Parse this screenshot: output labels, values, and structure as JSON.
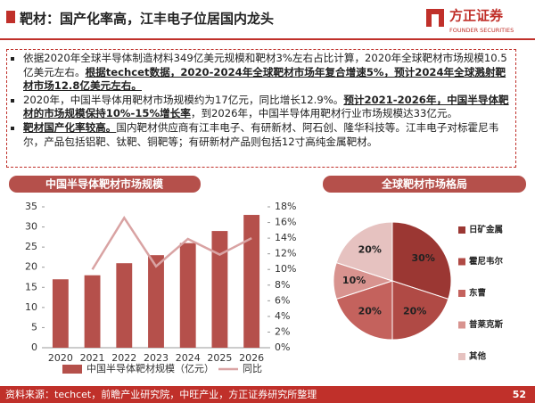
{
  "header": {
    "title": "靶材：国产化率高，江丰电子位居国内龙头",
    "logo_name": "方正证券",
    "logo_sub": "FOUNDER SECURITIES"
  },
  "bullets": [
    {
      "runs": [
        {
          "text": "依据2020年全球半导体制造材料349亿美元规模和靶材3%左右占比计算，2020年全球靶材市场规模10.5亿美元左右。",
          "bold": false,
          "underline": false
        },
        {
          "text": "根据techcet数据，2020-2024年全球靶材市场年复合增速5%，预计2024年全球溅射靶材市场12.8亿美元左右。",
          "bold": true,
          "underline": true
        }
      ]
    },
    {
      "runs": [
        {
          "text": "2020年，中国半导体用靶材市场规模约为17亿元，同比增长12.9%。",
          "bold": false,
          "underline": false
        },
        {
          "text": "预计2021-2026年，中国半导体靶材的市场规模保持10%-15%增长率",
          "bold": true,
          "underline": true
        },
        {
          "text": "，到2026年，中国半导体用靶材行业市场规模达33亿元。",
          "bold": false,
          "underline": false
        }
      ]
    },
    {
      "runs": [
        {
          "text": "靶材国产化率较高。",
          "bold": true,
          "underline": true
        },
        {
          "text": "国内靶材供应商有江丰电子、有研新材、阿石创、隆华科技等。江丰电子对标霍尼韦尔，产品包括铝靶、钛靶、铜靶等；有研新材产品则包括12寸高纯金属靶材。",
          "bold": false,
          "underline": false
        }
      ]
    }
  ],
  "chart_data": [
    {
      "type": "bar",
      "title": "中国半导体靶材市场规模",
      "categories": [
        "2020",
        "2021",
        "2022",
        "2023",
        "2024",
        "2025",
        "2026"
      ],
      "series": [
        {
          "name": "中国半导体靶材规模（亿元）",
          "color": "#b5504b",
          "values": [
            17,
            18,
            21,
            23,
            26,
            29,
            33
          ]
        },
        {
          "name": "同比",
          "color": "#d9a3a3",
          "type": "line",
          "axis": "y2",
          "values": [
            null,
            10,
            16.6,
            10.4,
            13.9,
            11.9,
            14
          ]
        }
      ],
      "ylim": [
        0,
        35
      ],
      "yticks": [
        0,
        5,
        10,
        15,
        20,
        25,
        30,
        35
      ],
      "y2lim": [
        0,
        18
      ],
      "y2ticks": [
        {
          "value": 0,
          "label": "0%"
        },
        {
          "value": 2,
          "label": "2%"
        },
        {
          "value": 4,
          "label": "4%"
        },
        {
          "value": 6,
          "label": "6%"
        },
        {
          "value": 8,
          "label": "8%"
        },
        {
          "value": 10,
          "label": "10%"
        },
        {
          "value": 12,
          "label": "12%"
        },
        {
          "value": 14,
          "label": "14%"
        },
        {
          "value": 16,
          "label": "16%"
        },
        {
          "value": 18,
          "label": "18%"
        }
      ]
    },
    {
      "type": "pie",
      "title": "全球靶材市场格局",
      "categories": [
        "日矿金属",
        "霍尼韦尔",
        "东曹",
        "普莱克斯",
        "其他"
      ],
      "values": [
        30,
        20,
        20,
        10,
        20
      ],
      "value_labels": [
        "30%",
        "20%",
        "20%",
        "10%",
        "20%"
      ],
      "colors": [
        "#9b3733",
        "#b04a45",
        "#c4625d",
        "#d8938f",
        "#e6c2c0"
      ]
    }
  ],
  "footer": {
    "source": "资料来源：techcet，前瞻产业研究院，中旺产业，方正证券研究所整理",
    "page": "52"
  }
}
